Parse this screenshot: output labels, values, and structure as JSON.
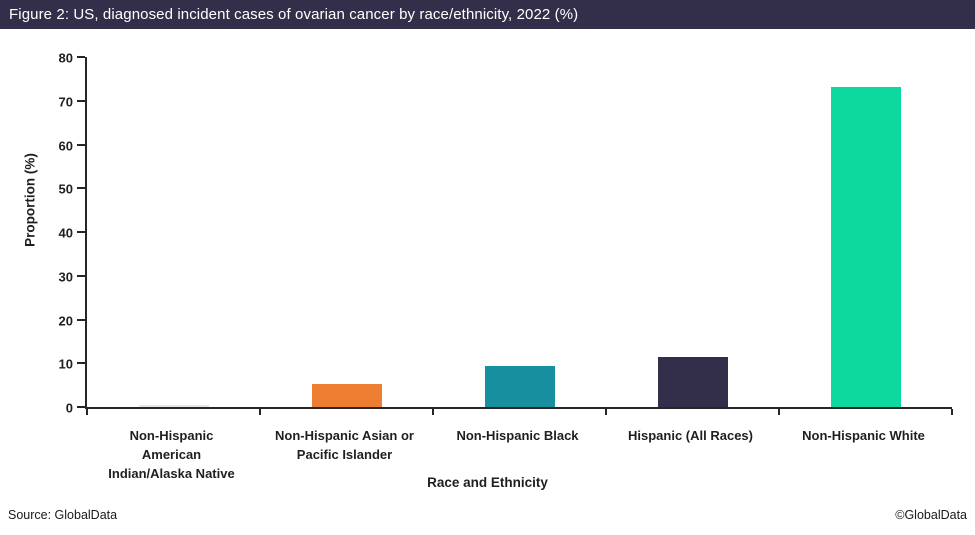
{
  "title_bar": {
    "text": "Figure 2: US, diagnosed incident cases of ovarian cancer by race/ethnicity, 2022 (%)",
    "bg_color": "#332F4A",
    "text_color": "#FFFFFF"
  },
  "chart_data": {
    "type": "bar",
    "title": "Figure 2: US, diagnosed incident cases of ovarian cancer by race/ethnicity, 2022 (%)",
    "categories": [
      "Non-Hispanic American Indian/Alaska Native",
      "Non-Hispanic Asian or Pacific Islander",
      "Non-Hispanic Black",
      "Hispanic (All Races)",
      "Non-Hispanic White"
    ],
    "values": [
      0.4,
      5.2,
      9.3,
      11.4,
      73.2
    ],
    "bar_colors": [
      "#E7E7E7",
      "#ED7D31",
      "#178F9E",
      "#332F4A",
      "#0BD99E"
    ],
    "xlabel": "Race and Ethnicity",
    "ylabel": "Proportion (%)",
    "ylim": [
      0,
      80
    ],
    "yticks": [
      0,
      10,
      20,
      30,
      40,
      50,
      60,
      70,
      80
    ],
    "grid": false,
    "legend": "none",
    "axis_color": "#262626"
  },
  "footer": {
    "source": "Source: GlobalData",
    "copyright": "©GlobalData"
  }
}
